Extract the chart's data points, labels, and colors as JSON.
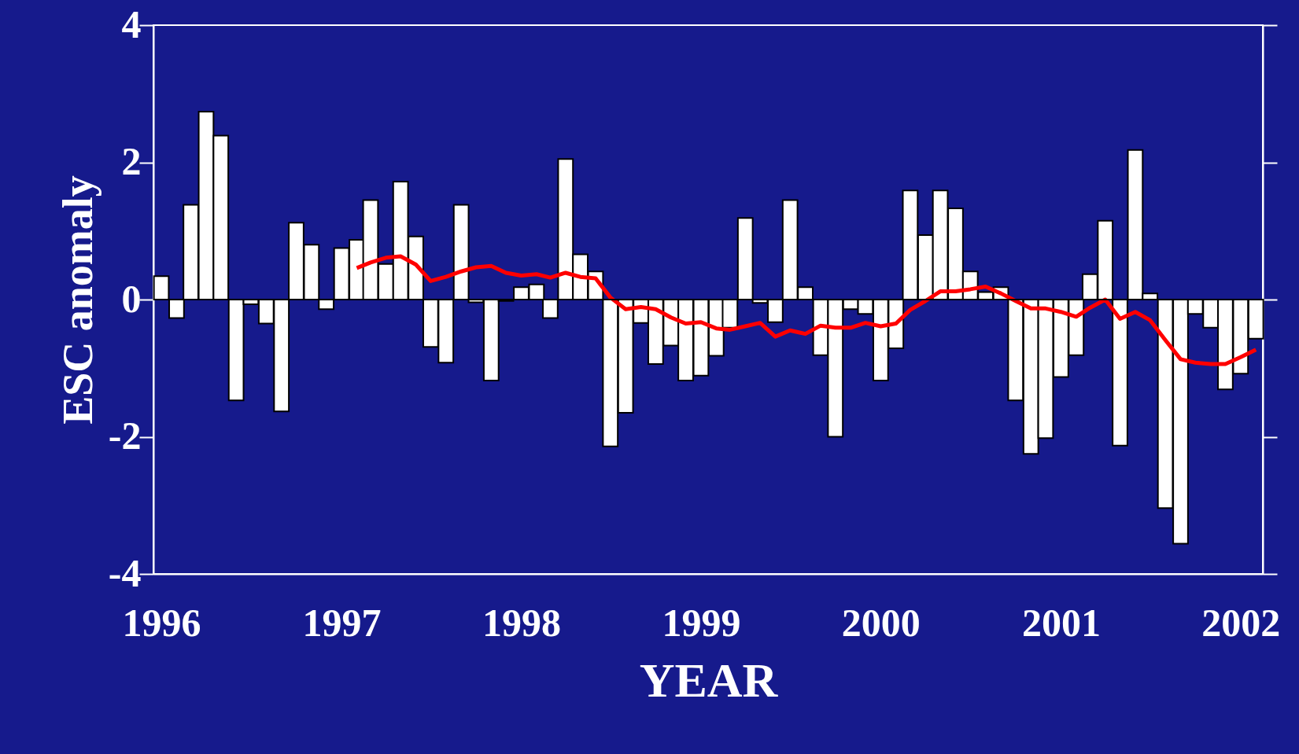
{
  "chart_data": {
    "type": "bar",
    "xlabel": "YEAR",
    "ylabel": "ESC anomaly",
    "x": [
      "1996-01",
      "1996-02",
      "1996-03",
      "1996-04",
      "1996-05",
      "1996-06",
      "1996-07",
      "1996-08",
      "1996-09",
      "1996-10",
      "1996-11",
      "1996-12",
      "1997-01",
      "1997-02",
      "1997-03",
      "1997-04",
      "1997-05",
      "1997-06",
      "1997-07",
      "1997-08",
      "1997-09",
      "1997-10",
      "1997-11",
      "1997-12",
      "1998-01",
      "1998-02",
      "1998-03",
      "1998-04",
      "1998-05",
      "1998-06",
      "1998-07",
      "1998-08",
      "1998-09",
      "1998-10",
      "1998-11",
      "1998-12",
      "1999-01",
      "1999-02",
      "1999-03",
      "1999-04",
      "1999-05",
      "1999-06",
      "1999-07",
      "1999-08",
      "1999-09",
      "1999-10",
      "1999-11",
      "1999-12",
      "2000-01",
      "2000-02",
      "2000-03",
      "2000-04",
      "2000-05",
      "2000-06",
      "2000-07",
      "2000-08",
      "2000-09",
      "2000-10",
      "2000-11",
      "2000-12",
      "2001-01",
      "2001-02",
      "2001-03",
      "2001-04",
      "2001-05",
      "2001-06",
      "2001-07",
      "2001-08",
      "2001-09",
      "2001-10",
      "2001-11",
      "2001-12",
      "2002-01",
      "2002-02"
    ],
    "series": [
      {
        "color": "#ffffff",
        "values": [
          0.34,
          -0.27,
          1.38,
          2.74,
          2.39,
          -1.47,
          -0.07,
          -0.35,
          -1.63,
          1.12,
          0.8,
          -0.14,
          0.75,
          0.87,
          1.45,
          0.52,
          1.72,
          0.92,
          -0.69,
          -0.92,
          1.38,
          -0.04,
          -1.18,
          -0.02,
          0.18,
          0.22,
          -0.27,
          2.05,
          0.66,
          0.41,
          -2.14,
          -1.65,
          -0.34,
          -0.94,
          -0.67,
          -1.18,
          -1.11,
          -0.82,
          -0.41,
          1.19,
          -0.05,
          -0.33,
          1.45,
          0.18,
          -0.81,
          -2.0,
          -0.14,
          -0.21,
          -1.18,
          -0.71,
          1.59,
          0.94,
          1.59,
          1.33,
          0.41,
          0.11,
          0.18,
          -1.47,
          -2.25,
          -2.02,
          -1.13,
          -0.81,
          0.37,
          1.15,
          -2.13,
          2.18,
          0.09,
          -3.04,
          -3.56,
          -0.21,
          -0.41,
          -1.31,
          -1.08,
          -0.57
        ]
      },
      {
        "type": "line",
        "color": "#ff0000",
        "line_style": "solid",
        "marker": "none",
        "x": [
          "1997-02",
          "1997-03",
          "1997-04",
          "1997-05",
          "1997-06",
          "1997-07",
          "1997-08",
          "1997-09",
          "1997-10",
          "1997-11",
          "1997-12",
          "1998-01",
          "1998-02",
          "1998-03",
          "1998-04",
          "1998-05",
          "1998-06",
          "1998-07",
          "1998-08",
          "1998-09",
          "1998-10",
          "1998-11",
          "1998-12",
          "1999-01",
          "1999-02",
          "1999-03",
          "1999-04",
          "1999-05",
          "1999-06",
          "1999-07",
          "1999-08",
          "1999-09",
          "1999-10",
          "1999-11",
          "1999-12",
          "2000-01",
          "2000-02",
          "2000-03",
          "2000-04",
          "2000-05",
          "2000-06",
          "2000-07",
          "2000-08",
          "2000-09",
          "2000-10",
          "2000-11",
          "2000-12",
          "2001-01",
          "2001-02",
          "2001-03",
          "2001-04",
          "2001-05",
          "2001-06",
          "2001-07",
          "2001-08",
          "2001-09",
          "2001-10",
          "2001-11",
          "2001-12",
          "2002-01",
          "2002-02"
        ],
        "values": [
          0.46,
          0.54,
          0.61,
          0.63,
          0.51,
          0.27,
          0.33,
          0.41,
          0.47,
          0.49,
          0.39,
          0.35,
          0.37,
          0.32,
          0.39,
          0.33,
          0.31,
          0.03,
          -0.14,
          -0.11,
          -0.14,
          -0.26,
          -0.35,
          -0.33,
          -0.42,
          -0.44,
          -0.39,
          -0.34,
          -0.54,
          -0.45,
          -0.5,
          -0.38,
          -0.41,
          -0.41,
          -0.34,
          -0.39,
          -0.35,
          -0.15,
          -0.02,
          0.12,
          0.12,
          0.15,
          0.19,
          0.09,
          -0.02,
          -0.13,
          -0.13,
          -0.18,
          -0.25,
          -0.12,
          0.0,
          -0.28,
          -0.18,
          -0.3,
          -0.59,
          -0.87,
          -0.92,
          -0.94,
          -0.94,
          -0.84,
          -0.73
        ]
      }
    ],
    "xlim": [
      "1995-12-16",
      "2002-02-15"
    ],
    "xticks": [
      {
        "value": "1996-01",
        "label": "1996"
      },
      {
        "value": "1997-01",
        "label": "1997"
      },
      {
        "value": "1998-01",
        "label": "1998"
      },
      {
        "value": "1999-01",
        "label": "1999"
      },
      {
        "value": "2000-01",
        "label": "2000"
      },
      {
        "value": "2001-01",
        "label": "2001"
      },
      {
        "value": "2002-01",
        "label": "2002"
      }
    ],
    "ylim": [
      -4,
      4
    ],
    "yticks": [
      -4,
      -2,
      0,
      2,
      4
    ],
    "ref_lines": [
      {
        "axis": "y",
        "value": 0,
        "color": "#000000"
      }
    ],
    "grid": false
  }
}
